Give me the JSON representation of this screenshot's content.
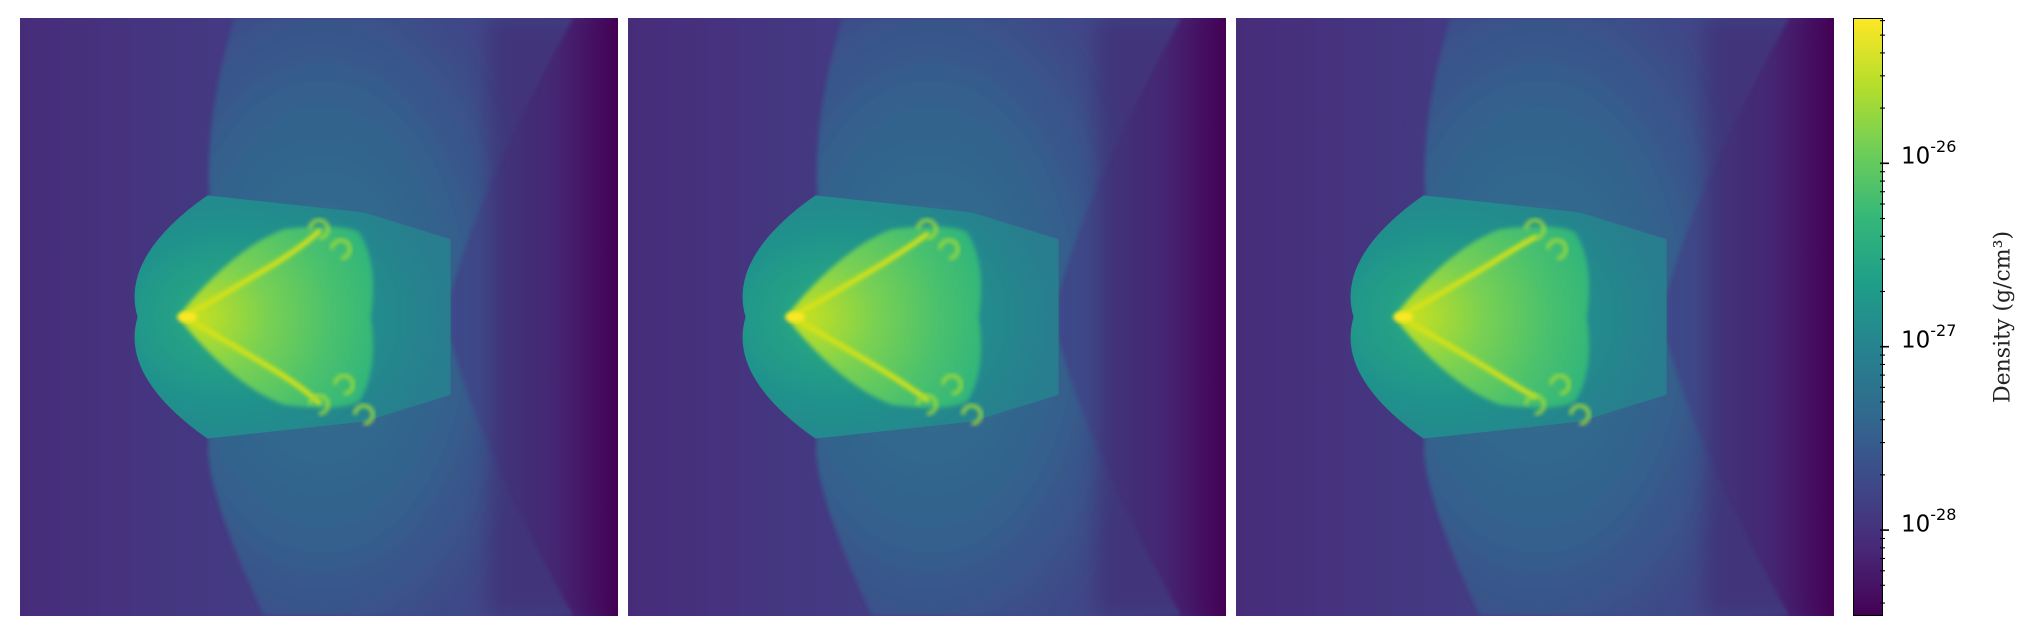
{
  "chart_data": {
    "type": "heatmap",
    "panels": [
      {
        "variant": 0
      },
      {
        "variant": 1
      },
      {
        "variant": 2
      }
    ],
    "colormap": "viridis",
    "colors": {
      "low": "#440154",
      "high": "#fde725",
      "background_purple": "#472d7b",
      "shock_blue": "#3b5a8c",
      "inner_teal": "#26918d",
      "core_green": "#6ece58"
    },
    "colorbar": {
      "scale": "log",
      "range": [
        3.4e-29,
        6.2e-26
      ],
      "major_ticks": [
        {
          "base": "10",
          "exp": "-26",
          "value": 1e-26
        },
        {
          "base": "10",
          "exp": "-27",
          "value": 1e-27
        },
        {
          "base": "10",
          "exp": "-28",
          "value": 1e-28
        }
      ],
      "label": "Density (g/cm³)"
    }
  }
}
